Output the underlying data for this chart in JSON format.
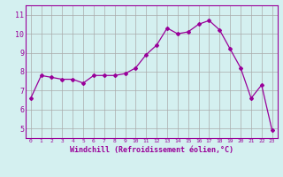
{
  "x": [
    0,
    1,
    2,
    3,
    4,
    5,
    6,
    7,
    8,
    9,
    10,
    11,
    12,
    13,
    14,
    15,
    16,
    17,
    18,
    19,
    20,
    21,
    22,
    23
  ],
  "y": [
    6.6,
    7.8,
    7.7,
    7.6,
    7.6,
    7.4,
    7.8,
    7.8,
    7.8,
    7.9,
    8.2,
    8.9,
    9.4,
    10.3,
    10.0,
    10.1,
    10.5,
    10.7,
    10.2,
    9.2,
    8.2,
    6.6,
    7.3,
    4.9
  ],
  "line_color": "#990099",
  "marker": "D",
  "marker_size": 2,
  "bg_color": "#d4f0f0",
  "grid_color": "#aaaaaa",
  "xlabel": "Windchill (Refroidissement éolien,°C)",
  "xlabel_color": "#990099",
  "tick_color": "#990099",
  "ylim": [
    4.5,
    11.5
  ],
  "xlim": [
    -0.5,
    23.5
  ],
  "yticks": [
    5,
    6,
    7,
    8,
    9,
    10,
    11
  ],
  "xticks": [
    0,
    1,
    2,
    3,
    4,
    5,
    6,
    7,
    8,
    9,
    10,
    11,
    12,
    13,
    14,
    15,
    16,
    17,
    18,
    19,
    20,
    21,
    22,
    23
  ]
}
